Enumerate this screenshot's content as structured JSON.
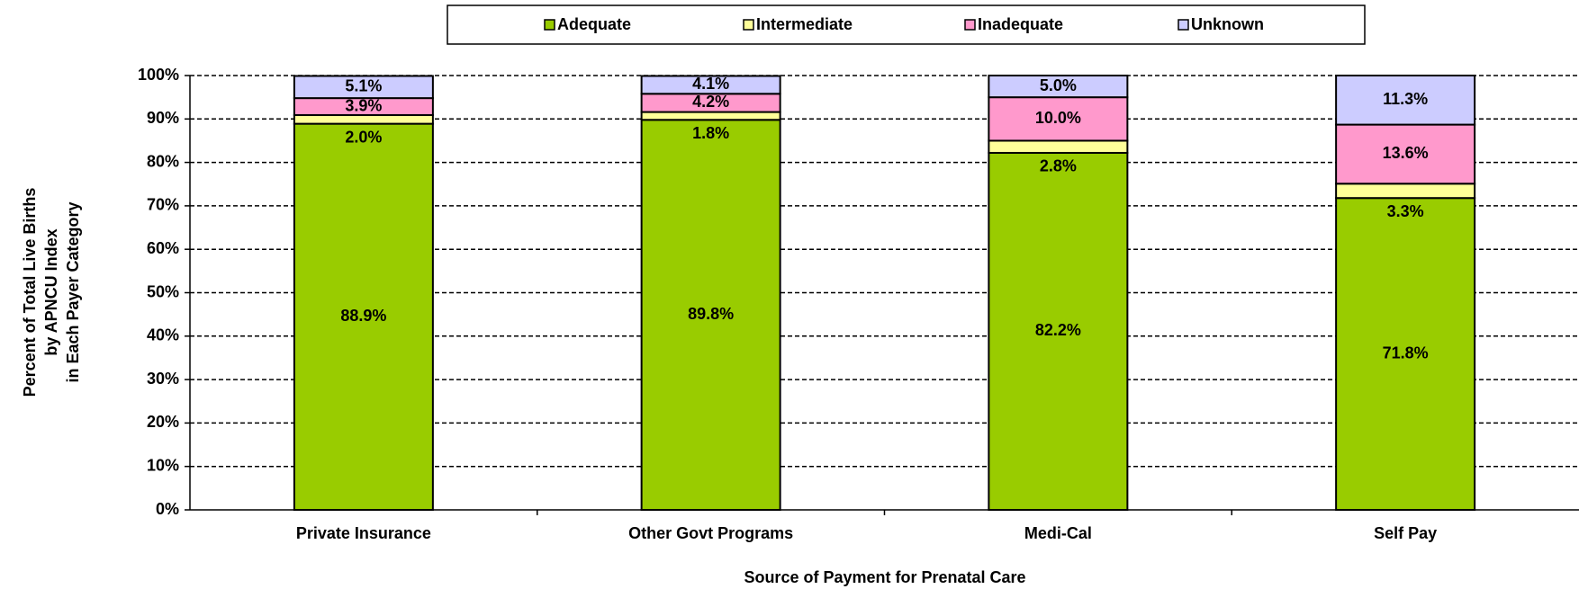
{
  "chart_data": {
    "type": "stacked_bar",
    "x_label": "Source of Payment for Prenatal Care",
    "y_label": [
      "Percent of Total Live Births",
      "by APNCU Index",
      "in Each Payer Category"
    ],
    "categories": [
      "Private Insurance",
      "Other Govt Programs",
      "Medi-Cal",
      "Self Pay"
    ],
    "series": [
      {
        "name": "Adequate",
        "color": "#99cc00",
        "values": [
          88.9,
          89.8,
          82.2,
          71.8
        ],
        "value_labels": [
          "88.9%",
          "89.8%",
          "82.2%",
          "71.8%"
        ]
      },
      {
        "name": "Intermediate",
        "color": "#ffff99",
        "values": [
          2.0,
          1.8,
          2.8,
          3.3
        ],
        "value_labels": [
          "2.0%",
          "1.8%",
          "2.8%",
          "3.3%"
        ]
      },
      {
        "name": "Inadequate",
        "color": "#ff99cc",
        "values": [
          3.9,
          4.2,
          10.0,
          13.6
        ],
        "value_labels": [
          "3.9%",
          "4.2%",
          "10.0%",
          "13.6%"
        ]
      },
      {
        "name": "Unknown",
        "color": "#ccccff",
        "values": [
          5.1,
          4.1,
          5.0,
          11.3
        ],
        "value_labels": [
          "5.1%",
          "4.1%",
          "5.0%",
          "11.3%"
        ]
      }
    ],
    "ylim": [
      0,
      100
    ],
    "yticks": [
      {
        "value": 0,
        "label": "0%"
      },
      {
        "value": 10,
        "label": "10%"
      },
      {
        "value": 20,
        "label": "20%"
      },
      {
        "value": 30,
        "label": "30%"
      },
      {
        "value": 40,
        "label": "40%"
      },
      {
        "value": 50,
        "label": "50%"
      },
      {
        "value": 60,
        "label": "60%"
      },
      {
        "value": 70,
        "label": "70%"
      },
      {
        "value": 80,
        "label": "80%"
      },
      {
        "value": 90,
        "label": "90%"
      },
      {
        "value": 100,
        "label": "100%"
      }
    ],
    "grid": true,
    "legend": "top"
  }
}
